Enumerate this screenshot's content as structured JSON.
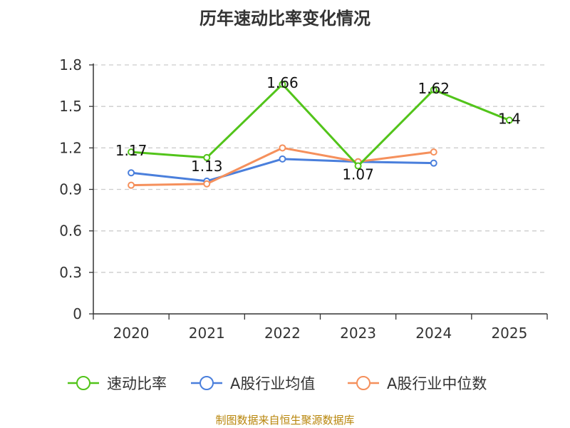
{
  "chart_data": {
    "type": "line",
    "title": "历年速动比率变化情况",
    "categories": [
      "2020",
      "2021",
      "2022",
      "2023",
      "2024",
      "2025"
    ],
    "ylim": [
      0,
      1.8
    ],
    "yticks": [
      "0",
      "0.3",
      "0.6",
      "0.9",
      "1.2",
      "1.5",
      "1.8"
    ],
    "grid": true,
    "legend_position": "bottom",
    "series": [
      {
        "name": "速动比率",
        "color": "#52c41a",
        "values": [
          1.17,
          1.13,
          1.66,
          1.07,
          1.62,
          1.4
        ],
        "labels": [
          "1.17",
          "1.13",
          "1.66",
          "1.07",
          "1.62",
          "1.4"
        ]
      },
      {
        "name": "A股行业均值",
        "color": "#4a7fdc",
        "values": [
          1.02,
          0.96,
          1.12,
          1.1,
          1.09,
          null
        ]
      },
      {
        "name": "A股行业中位数",
        "color": "#f5905c",
        "values": [
          0.93,
          0.94,
          1.2,
          1.1,
          1.17,
          null
        ]
      }
    ],
    "source": "制图数据来自恒生聚源数据库"
  }
}
